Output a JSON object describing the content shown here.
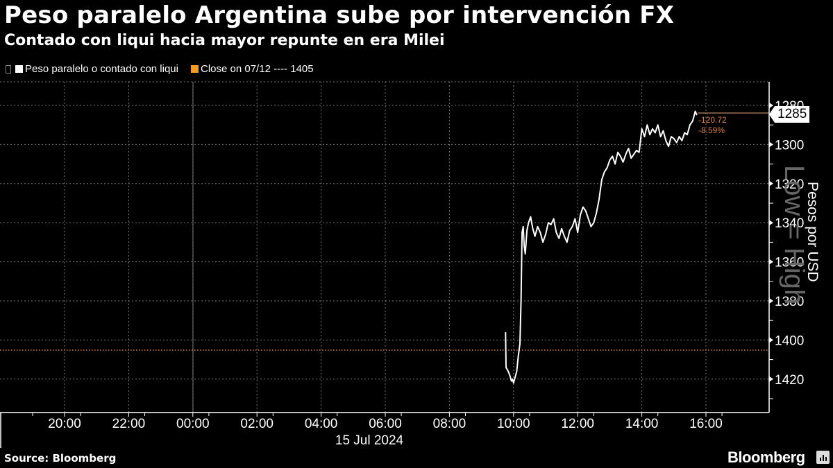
{
  "header": {
    "title": "Peso paralelo Argentina sube por intervención FX",
    "subtitle": "Contado con liqui hacia mayor repunte en era Milei"
  },
  "legend": {
    "items": [
      {
        "label": "Peso paralelo o contado con liqui",
        "color": "#ffffff"
      },
      {
        "label": "Close on 07/12 ---- 1405",
        "color": "#f39c1e"
      }
    ]
  },
  "last_value": {
    "value": "1285",
    "change_abs": "-120.72",
    "change_pct": "-8.59%"
  },
  "axes": {
    "y_label": "Pesos por USD",
    "y_watermark": "Low = High",
    "date_label": "15 Jul 2024"
  },
  "footer": {
    "source": "Source: Bloomberg",
    "brand": "Bloomberg"
  },
  "colors": {
    "background": "#000000",
    "line": "#ffffff",
    "close_line": "#e07f3c",
    "grid": "#777777"
  },
  "chart_data": {
    "type": "line",
    "title": "Peso paralelo Argentina sube por intervención FX",
    "subtitle": "Contado con liqui hacia mayor repunte en era Milei",
    "xlabel": "",
    "ylabel": "Pesos por USD",
    "y_inverted": true,
    "ylim": [
      1430,
      1275
    ],
    "yticks": [
      1280,
      1300,
      1320,
      1340,
      1360,
      1380,
      1400,
      1420
    ],
    "xticks": [
      "20:00",
      "22:00",
      "00:00",
      "02:00",
      "04:00",
      "06:00",
      "08:00",
      "10:00",
      "12:00",
      "14:00",
      "16:00"
    ],
    "date_label": "15 Jul 2024",
    "grid": true,
    "legend_position": "top-left",
    "reference_lines": [
      {
        "name": "Close on 07/12",
        "value": 1405,
        "style": "dotted",
        "color": "#e07f3c"
      }
    ],
    "series": [
      {
        "name": "Peso paralelo o contado con liqui",
        "x": [
          "09:45",
          "09:46",
          "09:50",
          "09:53",
          "09:56",
          "09:58",
          "10:00",
          "10:03",
          "10:06",
          "10:09",
          "10:12",
          "10:14",
          "10:16",
          "10:18",
          "10:20",
          "10:22",
          "10:25",
          "10:28",
          "10:32",
          "10:36",
          "10:40",
          "10:45",
          "10:50",
          "10:55",
          "11:00",
          "11:05",
          "11:10",
          "11:15",
          "11:20",
          "11:25",
          "11:30",
          "11:35",
          "11:40",
          "11:45",
          "11:50",
          "11:55",
          "12:00",
          "12:05",
          "12:10",
          "12:15",
          "12:20",
          "12:25",
          "12:30",
          "12:35",
          "12:40",
          "12:45",
          "12:50",
          "12:55",
          "13:00",
          "13:05",
          "13:10",
          "13:15",
          "13:20",
          "13:25",
          "13:30",
          "13:35",
          "13:40",
          "13:45",
          "13:50",
          "13:55",
          "14:00",
          "14:05",
          "14:10",
          "14:15",
          "14:20",
          "14:25",
          "14:30",
          "14:35",
          "14:40",
          "14:45",
          "14:50",
          "14:55",
          "15:00",
          "15:05",
          "15:10",
          "15:15",
          "15:20",
          "15:25",
          "15:30",
          "15:35",
          "15:40",
          "15:43"
        ],
        "values": [
          1396,
          1414,
          1416,
          1418,
          1421,
          1420,
          1422,
          1419,
          1416,
          1408,
          1402,
          1380,
          1345,
          1342,
          1352,
          1356,
          1344,
          1340,
          1337,
          1343,
          1347,
          1342,
          1345,
          1350,
          1346,
          1340,
          1341,
          1338,
          1345,
          1348,
          1343,
          1347,
          1350,
          1344,
          1342,
          1338,
          1345,
          1336,
          1332,
          1334,
          1338,
          1342,
          1340,
          1335,
          1328,
          1318,
          1314,
          1312,
          1308,
          1306,
          1310,
          1304,
          1306,
          1309,
          1305,
          1302,
          1307,
          1305,
          1303,
          1304,
          1292,
          1296,
          1290,
          1295,
          1292,
          1294,
          1290,
          1296,
          1293,
          1298,
          1301,
          1296,
          1297,
          1299,
          1296,
          1298,
          1294,
          1295,
          1290,
          1288,
          1283,
          1285
        ]
      }
    ]
  }
}
